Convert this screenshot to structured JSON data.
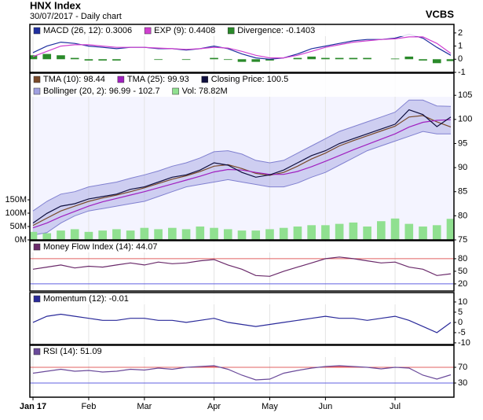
{
  "header": {
    "title": "HNX Index",
    "subtitle": "30/07/2017 - Daily chart",
    "brand": "VCBS"
  },
  "chart_data": [
    {
      "type": "line",
      "ylim": [
        -1,
        2.65
      ],
      "yticks": [
        -1,
        0,
        1,
        2
      ],
      "series": [
        {
          "name": "MACD (26, 12): 0.3006",
          "type": "line",
          "color": "#1f2f9f",
          "values": [
            0.5,
            1.0,
            1.3,
            1.2,
            1.0,
            0.9,
            0.8,
            0.9,
            0.9,
            0.8,
            0.8,
            0.7,
            0.8,
            1.0,
            0.8,
            0.4,
            0.1,
            0.0,
            0.1,
            0.4,
            0.8,
            1.0,
            1.2,
            1.4,
            1.5,
            1.5,
            1.6,
            1.9,
            1.6,
            0.9,
            0.3006
          ]
        },
        {
          "name": "EXP (9): 0.4408",
          "type": "line",
          "color": "#d040d0",
          "values": [
            0.2,
            0.6,
            1.0,
            1.1,
            1.1,
            1.0,
            0.9,
            0.9,
            0.9,
            0.85,
            0.8,
            0.75,
            0.8,
            0.9,
            0.85,
            0.6,
            0.3,
            0.1,
            0.1,
            0.3,
            0.6,
            0.9,
            1.1,
            1.3,
            1.4,
            1.5,
            1.55,
            1.7,
            1.7,
            1.2,
            0.4408
          ]
        },
        {
          "name": "Divergence: -0.1403",
          "type": "bar",
          "color": "#2a8a2a",
          "values": [
            0.3,
            0.4,
            0.3,
            0.1,
            -0.1,
            -0.1,
            -0.1,
            0,
            0,
            -0.05,
            0,
            -0.05,
            0,
            0.1,
            -0.05,
            -0.2,
            -0.2,
            -0.1,
            0,
            0.1,
            0.2,
            0.1,
            0.1,
            0.1,
            0.1,
            0,
            0.05,
            0.2,
            -0.1,
            -0.3,
            -0.1403
          ]
        }
      ]
    },
    {
      "type": "line",
      "ylim": [
        75,
        109.6
      ],
      "yticks": [
        75,
        80,
        85,
        90,
        95,
        100,
        105
      ],
      "y2lim": [
        0,
        624000000
      ],
      "y2ticks": [
        {
          "value": 0,
          "label": "0M"
        },
        {
          "value": 50000000,
          "label": "50M"
        },
        {
          "value": 100000000,
          "label": "100M"
        },
        {
          "value": 150000000,
          "label": "150M"
        }
      ],
      "series": [
        {
          "name": "TMA (10): 98.44",
          "type": "line",
          "color": "#7a4a2a",
          "values": [
            78,
            79.5,
            81,
            82,
            83,
            83.7,
            84.3,
            85,
            85.8,
            86.7,
            87.6,
            88.3,
            89.2,
            90.3,
            90.6,
            89.8,
            88.8,
            88.4,
            89,
            90.3,
            91.8,
            93,
            94.5,
            95.6,
            96.6,
            97.6,
            98.6,
            100.5,
            100.8,
            99.5,
            98.44
          ]
        },
        {
          "name": "TMA (25): 99.93",
          "type": "line",
          "color": "#a020c0",
          "values": [
            77.5,
            78.5,
            79.8,
            80.9,
            82,
            82.9,
            83.6,
            84.3,
            85,
            85.8,
            86.6,
            87.4,
            88.2,
            89.1,
            89.6,
            89.5,
            89,
            88.6,
            88.6,
            89.2,
            90.2,
            91.3,
            92.5,
            93.7,
            94.8,
            95.9,
            97,
            98.4,
            99.4,
            99.8,
            99.93
          ]
        },
        {
          "name": "Closing Price: 100.5",
          "type": "line",
          "color": "#101040",
          "values": [
            78.5,
            80.5,
            82,
            82.5,
            83.5,
            84,
            84.5,
            85.5,
            86,
            87,
            88,
            88.5,
            89.5,
            91,
            90.5,
            89,
            88,
            88.5,
            89.5,
            91,
            92.5,
            93.5,
            95,
            96,
            97,
            98,
            99,
            102,
            101,
            98.5,
            100.5
          ]
        },
        {
          "name": "Bollinger (20, 2): 96.99 - 102.7",
          "type": "band",
          "color": "#a0a0e0",
          "upper": [
            81,
            83,
            84.5,
            85,
            86,
            86.5,
            87,
            87.8,
            88.5,
            89.3,
            90.3,
            91,
            92,
            93.3,
            93.5,
            92.8,
            91.5,
            91,
            91.5,
            93,
            94.5,
            96,
            97.5,
            98.5,
            99.5,
            100.5,
            101.5,
            104,
            104,
            102.8,
            102.7
          ],
          "lower": [
            76,
            76.5,
            78.5,
            80,
            81,
            81.5,
            82,
            82.5,
            83,
            84,
            85,
            86,
            86.5,
            87,
            87.5,
            87,
            86.5,
            86,
            86,
            86.8,
            88,
            89,
            90.5,
            92,
            93.5,
            94.5,
            95.5,
            96.5,
            97.5,
            97,
            96.99
          ]
        },
        {
          "name": "Vol: 78.82M",
          "type": "bar",
          "axis": "y2",
          "color": "#90e090",
          "values": [
            30000000,
            25000000,
            35000000,
            40000000,
            30000000,
            35000000,
            40000000,
            35000000,
            45000000,
            40000000,
            45000000,
            40000000,
            50000000,
            45000000,
            40000000,
            35000000,
            35000000,
            40000000,
            45000000,
            50000000,
            55000000,
            55000000,
            60000000,
            65000000,
            50000000,
            70000000,
            80000000,
            60000000,
            50000000,
            55000000,
            78820000
          ]
        }
      ]
    },
    {
      "type": "line",
      "ylim": [
        3,
        123
      ],
      "yticks": [
        20,
        50,
        80
      ],
      "levels": [
        80,
        20
      ],
      "series": [
        {
          "name": "Money Flow Index (14): 44.07",
          "type": "line",
          "color": "#6a2a6a",
          "values": [
            55,
            60,
            65,
            58,
            62,
            60,
            65,
            70,
            65,
            72,
            68,
            70,
            75,
            78,
            65,
            55,
            40,
            38,
            50,
            60,
            70,
            80,
            84,
            80,
            75,
            70,
            72,
            60,
            55,
            40,
            44.07
          ]
        }
      ]
    },
    {
      "type": "line",
      "ylim": [
        -10.8,
        14.6
      ],
      "yticks": [
        -10,
        -5,
        0,
        5,
        10
      ],
      "series": [
        {
          "name": "Momentum (12): -0.01",
          "type": "line",
          "color": "#2a2a9a",
          "values": [
            0,
            3,
            4,
            3,
            2,
            1,
            1,
            2,
            2,
            1,
            1,
            0,
            1,
            2,
            0,
            -1,
            -2,
            -1,
            0,
            1,
            2,
            3,
            2,
            2,
            1,
            2,
            3,
            1,
            -2,
            -5,
            -0.01
          ]
        }
      ]
    },
    {
      "type": "line",
      "ylim": [
        -6,
        126
      ],
      "yticks": [
        30,
        70
      ],
      "levels": [
        70,
        30
      ],
      "overbought_fill": true,
      "categories": [
        "Jan 17",
        null,
        null,
        null,
        "Feb",
        null,
        null,
        null,
        "Mar",
        null,
        null,
        null,
        null,
        "Apr",
        null,
        null,
        null,
        "May",
        null,
        null,
        null,
        "Jun",
        null,
        null,
        null,
        null,
        "Jul",
        null,
        null,
        null,
        null
      ],
      "series": [
        {
          "name": "RSI (14): 51.09",
          "type": "line",
          "color": "#6a4a9a",
          "values": [
            55,
            60,
            65,
            60,
            62,
            58,
            60,
            65,
            63,
            68,
            65,
            70,
            72,
            74,
            65,
            50,
            38,
            40,
            55,
            62,
            68,
            72,
            74,
            72,
            70,
            66,
            70,
            68,
            50,
            40,
            51.09
          ]
        }
      ]
    }
  ]
}
